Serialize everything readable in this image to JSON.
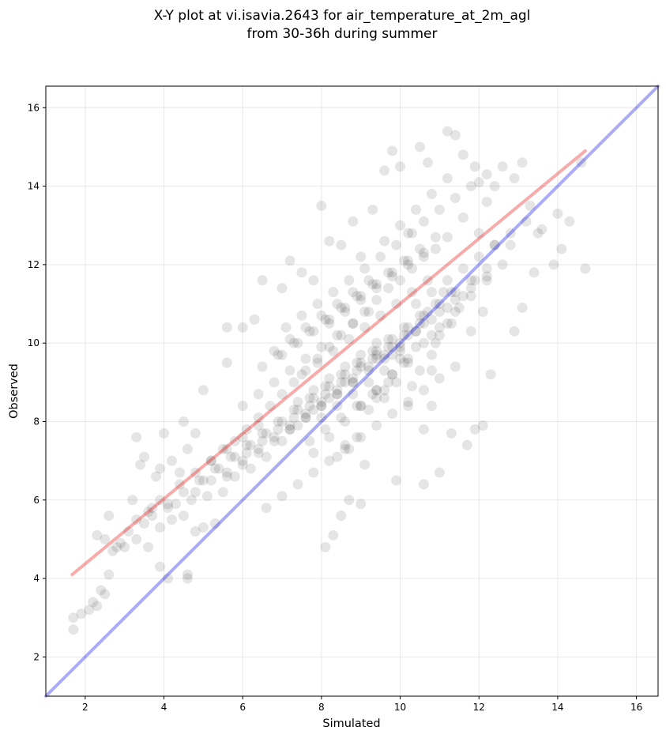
{
  "chart_data": {
    "type": "scatter",
    "title": "X-Y plot at vi.isavia.2643 for air_temperature_at_2m_agl",
    "subtitle": "from 30-36h during summer",
    "xlabel": "Simulated",
    "ylabel": "Observed",
    "xlim": [
      1.0,
      16.55
    ],
    "ylim": [
      1.0,
      16.55
    ],
    "xticks": [
      2,
      4,
      6,
      8,
      10,
      12,
      14,
      16
    ],
    "yticks": [
      2,
      4,
      6,
      8,
      10,
      12,
      14,
      16
    ],
    "grid": true,
    "legend": "none",
    "colors": {
      "points": "#000000",
      "identity_line": "#0000e6",
      "fit_line": "#e60000"
    },
    "lines": [
      {
        "kind": "identity",
        "x": [
          1.0,
          16.55
        ],
        "y": [
          1.0,
          16.55
        ]
      },
      {
        "kind": "fit",
        "x": [
          1.67,
          14.7
        ],
        "y": [
          4.1,
          14.9
        ]
      }
    ],
    "points": {
      "x": [
        1.7,
        1.7,
        1.9,
        2.1,
        2.2,
        2.3,
        2.4,
        2.5,
        2.6,
        2.7,
        2.9,
        3.1,
        3.3,
        3.5,
        3.6,
        3.7,
        3.9,
        4.1,
        4.6,
        4.6,
        2.3,
        2.5,
        2.8,
        3.0,
        3.3,
        3.5,
        3.9,
        4.0,
        4.4,
        4.6,
        4.8,
        2.6,
        3.2,
        3.4,
        3.8,
        4.2,
        4.5,
        5.0,
        5.6,
        5.6,
        6.0,
        6.3,
        6.5,
        7.0,
        7.2,
        7.5,
        7.8,
        8.0,
        8.2,
        8.5,
        8.8,
        9.0,
        9.3,
        9.6,
        9.8,
        10.0,
        10.5,
        10.7,
        11.2,
        11.4,
        11.6,
        11.9,
        12.0,
        12.2,
        12.4,
        12.6,
        12.9,
        13.1,
        13.3,
        13.5,
        13.6,
        14.0,
        14.3,
        14.6,
        14.7,
        14.1,
        13.9,
        13.4,
        12.8,
        12.2,
        11.9,
        11.5,
        11.3,
        11.1,
        10.9,
        10.7,
        10.4,
        10.2,
        10.0,
        9.8,
        9.6,
        9.1,
        8.1,
        10.2,
        8.5,
        8.3,
        8.7,
        9.0,
        9.9,
        10.6,
        11.0,
        11.3,
        10.6,
        10.8,
        11.7,
        11.9,
        12.1,
        12.3,
        12.1,
        11.8,
        10.8,
        9.4,
        8.7,
        8.4,
        8.6,
        8.9,
        9.2,
        9.6,
        9.9,
        10.1,
        10.3,
        10.5,
        10.8,
        11.0,
        12.9,
        13.1,
        12.4,
        3.3,
        3.6,
        3.9,
        4.2,
        4.5,
        4.8,
        5.0,
        5.3,
        3.9,
        4.1,
        4.3,
        4.7,
        5.1,
        5.5,
        5.8,
        6.2,
        6.6,
        7.0,
        7.4,
        7.8,
        8.2,
        8.6,
        9.0,
        9.4,
        5.2,
        5.5,
        5.8,
        6.1,
        6.4,
        6.7,
        7.0,
        7.3,
        7.6,
        7.9,
        8.2,
        8.5,
        8.8,
        9.1,
        9.4,
        9.7,
        10.0,
        10.3,
        10.6,
        10.9,
        11.2,
        5.0,
        5.4,
        5.8,
        6.2,
        6.6,
        7.0,
        7.4,
        7.8,
        8.2,
        8.6,
        9.0,
        9.4,
        9.8,
        10.2,
        10.6,
        11.0,
        11.4,
        11.8,
        12.2,
        4.8,
        5.2,
        5.6,
        6.0,
        6.4,
        6.8,
        7.2,
        7.6,
        8.0,
        8.4,
        8.8,
        9.2,
        9.6,
        10.0,
        10.4,
        10.8,
        11.2,
        11.6,
        6.5,
        6.9,
        7.3,
        7.7,
        8.1,
        8.5,
        8.9,
        9.3,
        9.7,
        10.1,
        10.5,
        10.9,
        6.1,
        6.5,
        6.9,
        7.3,
        7.7,
        8.1,
        8.5,
        8.9,
        9.3,
        9.7,
        10.1,
        10.5,
        7.0,
        7.4,
        7.8,
        8.2,
        8.6,
        9.0,
        9.4,
        9.8,
        10.2,
        7.2,
        7.6,
        8.0,
        8.4,
        8.8,
        9.2,
        9.6,
        10.0,
        7.5,
        7.9,
        8.3,
        8.7,
        9.1,
        9.5,
        9.9,
        10.3,
        10.7,
        8.0,
        8.4,
        8.8,
        9.2,
        9.6,
        10.0,
        10.4,
        10.8,
        11.2,
        9.0,
        9.4,
        9.8,
        10.2,
        10.6,
        11.0,
        11.4,
        11.8,
        9.6,
        10.0,
        10.4,
        10.8,
        11.2,
        11.6,
        12.0,
        6.0,
        6.4,
        6.8,
        7.2,
        7.6,
        8.0,
        8.4,
        8.8,
        9.2,
        5.6,
        6.0,
        6.4,
        6.8,
        7.2,
        7.6,
        8.0,
        8.4,
        8.8,
        6.8,
        7.2,
        7.6,
        8.0,
        8.4,
        8.8,
        9.2,
        7.8,
        8.2,
        8.6,
        9.0,
        9.4,
        9.8,
        8.2,
        8.6,
        9.0,
        9.4,
        9.8,
        10.2,
        10.6,
        7.4,
        7.8,
        8.2,
        8.6,
        9.0,
        9.4,
        6.6,
        7.0,
        7.4,
        7.8,
        8.2,
        8.6,
        9.0,
        9.4,
        9.8,
        10.2,
        10.6,
        11.0,
        11.4,
        10.2,
        10.6,
        11.0,
        11.4,
        11.8,
        12.2,
        10.4,
        10.8,
        11.2,
        11.6,
        12.0,
        12.4,
        12.8,
        13.2,
        9.4,
        9.8,
        10.2,
        10.6,
        11.0,
        11.4,
        11.8,
        12.2,
        12.6,
        4.4,
        4.8,
        5.2,
        5.6,
        6.0,
        6.4,
        3.7,
        4.1,
        4.5,
        4.9,
        5.3,
        5.7,
        6.1,
        6.5,
        6.9,
        7.3,
        7.7,
        8.1,
        8.5,
        8.9,
        9.3,
        9.7,
        10.1,
        10.5,
        10.9,
        11.3,
        7.1,
        7.5,
        7.9,
        8.3,
        8.7,
        9.1,
        9.5,
        9.9,
        10.3,
        7.7,
        8.1,
        8.5,
        8.9,
        9.3,
        9.7
      ],
      "y": [
        2.7,
        3.0,
        3.1,
        3.2,
        3.4,
        3.3,
        3.7,
        3.6,
        4.1,
        4.7,
        4.9,
        5.2,
        5.5,
        5.4,
        5.7,
        5.8,
        4.3,
        4.0,
        4.1,
        4.0,
        5.1,
        5.0,
        4.8,
        4.8,
        7.6,
        7.1,
        6.8,
        7.7,
        6.7,
        7.3,
        7.7,
        5.6,
        6.0,
        6.9,
        6.6,
        7.0,
        8.0,
        8.8,
        10.4,
        9.5,
        10.4,
        10.6,
        11.6,
        11.4,
        12.1,
        11.8,
        11.6,
        13.5,
        12.6,
        12.5,
        13.1,
        12.2,
        13.4,
        14.4,
        14.9,
        14.5,
        15.0,
        14.6,
        15.4,
        15.3,
        14.8,
        14.5,
        14.1,
        13.6,
        14.0,
        14.5,
        14.2,
        14.6,
        13.5,
        12.8,
        12.9,
        13.3,
        13.1,
        14.6,
        11.9,
        12.4,
        12.0,
        11.8,
        12.5,
        11.6,
        11.6,
        10.9,
        10.5,
        11.3,
        10.0,
        10.8,
        10.3,
        9.5,
        9.8,
        9.7,
        8.8,
        6.9,
        4.8,
        8.4,
        5.6,
        5.1,
        6.0,
        5.9,
        6.5,
        6.4,
        6.7,
        7.7,
        7.8,
        9.3,
        7.4,
        7.8,
        7.9,
        9.2,
        10.8,
        10.3,
        8.4,
        8.6,
        7.3,
        7.1,
        7.4,
        7.6,
        8.3,
        8.6,
        9.0,
        9.5,
        8.9,
        9.3,
        9.7,
        10.2,
        10.3,
        10.9,
        12.5,
        5.0,
        4.8,
        5.3,
        5.5,
        5.6,
        5.2,
        5.3,
        5.4,
        6.0,
        5.8,
        5.9,
        6.0,
        6.1,
        6.2,
        6.6,
        6.8,
        7.1,
        7.5,
        7.9,
        8.3,
        8.6,
        9.0,
        9.4,
        9.7,
        7.0,
        7.3,
        7.5,
        7.8,
        8.1,
        8.4,
        8.7,
        9.0,
        9.3,
        9.6,
        9.9,
        10.2,
        10.5,
        10.8,
        11.1,
        11.4,
        11.6,
        11.9,
        12.2,
        12.4,
        12.7,
        6.5,
        6.8,
        7.1,
        7.4,
        7.7,
        8.0,
        8.3,
        8.6,
        8.9,
        9.2,
        9.5,
        9.8,
        10.1,
        10.4,
        10.7,
        11.0,
        11.3,
        11.6,
        11.9,
        6.2,
        6.5,
        6.7,
        7.0,
        7.3,
        7.6,
        7.9,
        8.2,
        8.5,
        8.8,
        9.1,
        9.4,
        9.7,
        10.0,
        10.3,
        10.6,
        10.9,
        11.2,
        9.4,
        9.7,
        10.0,
        10.3,
        10.6,
        10.9,
        11.2,
        11.5,
        11.8,
        12.1,
        12.4,
        12.7,
        7.2,
        7.5,
        7.8,
        8.1,
        8.4,
        8.7,
        9.0,
        9.3,
        9.6,
        9.9,
        10.2,
        10.5,
        9.7,
        10.0,
        10.3,
        10.6,
        10.9,
        11.2,
        11.5,
        11.8,
        12.1,
        7.8,
        8.1,
        8.4,
        8.7,
        9.0,
        9.3,
        9.6,
        9.9,
        9.2,
        9.5,
        9.8,
        10.1,
        10.4,
        10.7,
        11.0,
        11.3,
        11.6,
        8.1,
        8.4,
        8.7,
        9.0,
        9.3,
        9.6,
        9.9,
        10.2,
        10.5,
        8.4,
        8.8,
        9.2,
        9.6,
        10.0,
        10.4,
        10.8,
        11.2,
        12.6,
        13.0,
        13.4,
        13.8,
        14.2,
        13.2,
        12.8,
        8.4,
        8.7,
        9.0,
        9.3,
        9.6,
        9.9,
        10.2,
        10.5,
        10.8,
        6.6,
        6.9,
        7.2,
        7.5,
        7.8,
        8.1,
        8.4,
        8.7,
        9.0,
        9.8,
        10.1,
        10.4,
        10.7,
        11.0,
        11.3,
        11.6,
        7.2,
        7.6,
        8.0,
        8.4,
        8.8,
        9.2,
        10.5,
        10.8,
        11.1,
        11.4,
        11.7,
        12.0,
        12.3,
        8.5,
        8.8,
        9.1,
        9.4,
        9.7,
        10.0,
        5.8,
        6.1,
        6.4,
        6.7,
        7.0,
        7.3,
        7.6,
        7.9,
        8.2,
        8.5,
        8.8,
        9.1,
        9.4,
        12.8,
        13.1,
        13.4,
        13.7,
        14.0,
        14.3,
        11.0,
        11.3,
        11.6,
        11.9,
        12.2,
        12.5,
        12.8,
        13.1,
        9.6,
        9.9,
        10.2,
        10.5,
        10.8,
        11.1,
        11.4,
        11.7,
        12.0,
        6.4,
        6.7,
        7.0,
        7.3,
        7.6,
        7.9,
        5.6,
        5.9,
        6.2,
        6.5,
        6.8,
        7.1,
        7.4,
        7.7,
        8.0,
        8.3,
        8.6,
        8.9,
        9.2,
        9.5,
        9.8,
        10.1,
        10.4,
        10.7,
        11.0,
        11.3,
        10.4,
        10.7,
        11.0,
        11.3,
        11.6,
        11.9,
        12.2,
        12.5,
        12.8,
        7.5,
        7.8,
        8.1,
        8.4,
        8.7,
        9.0
      ]
    }
  }
}
